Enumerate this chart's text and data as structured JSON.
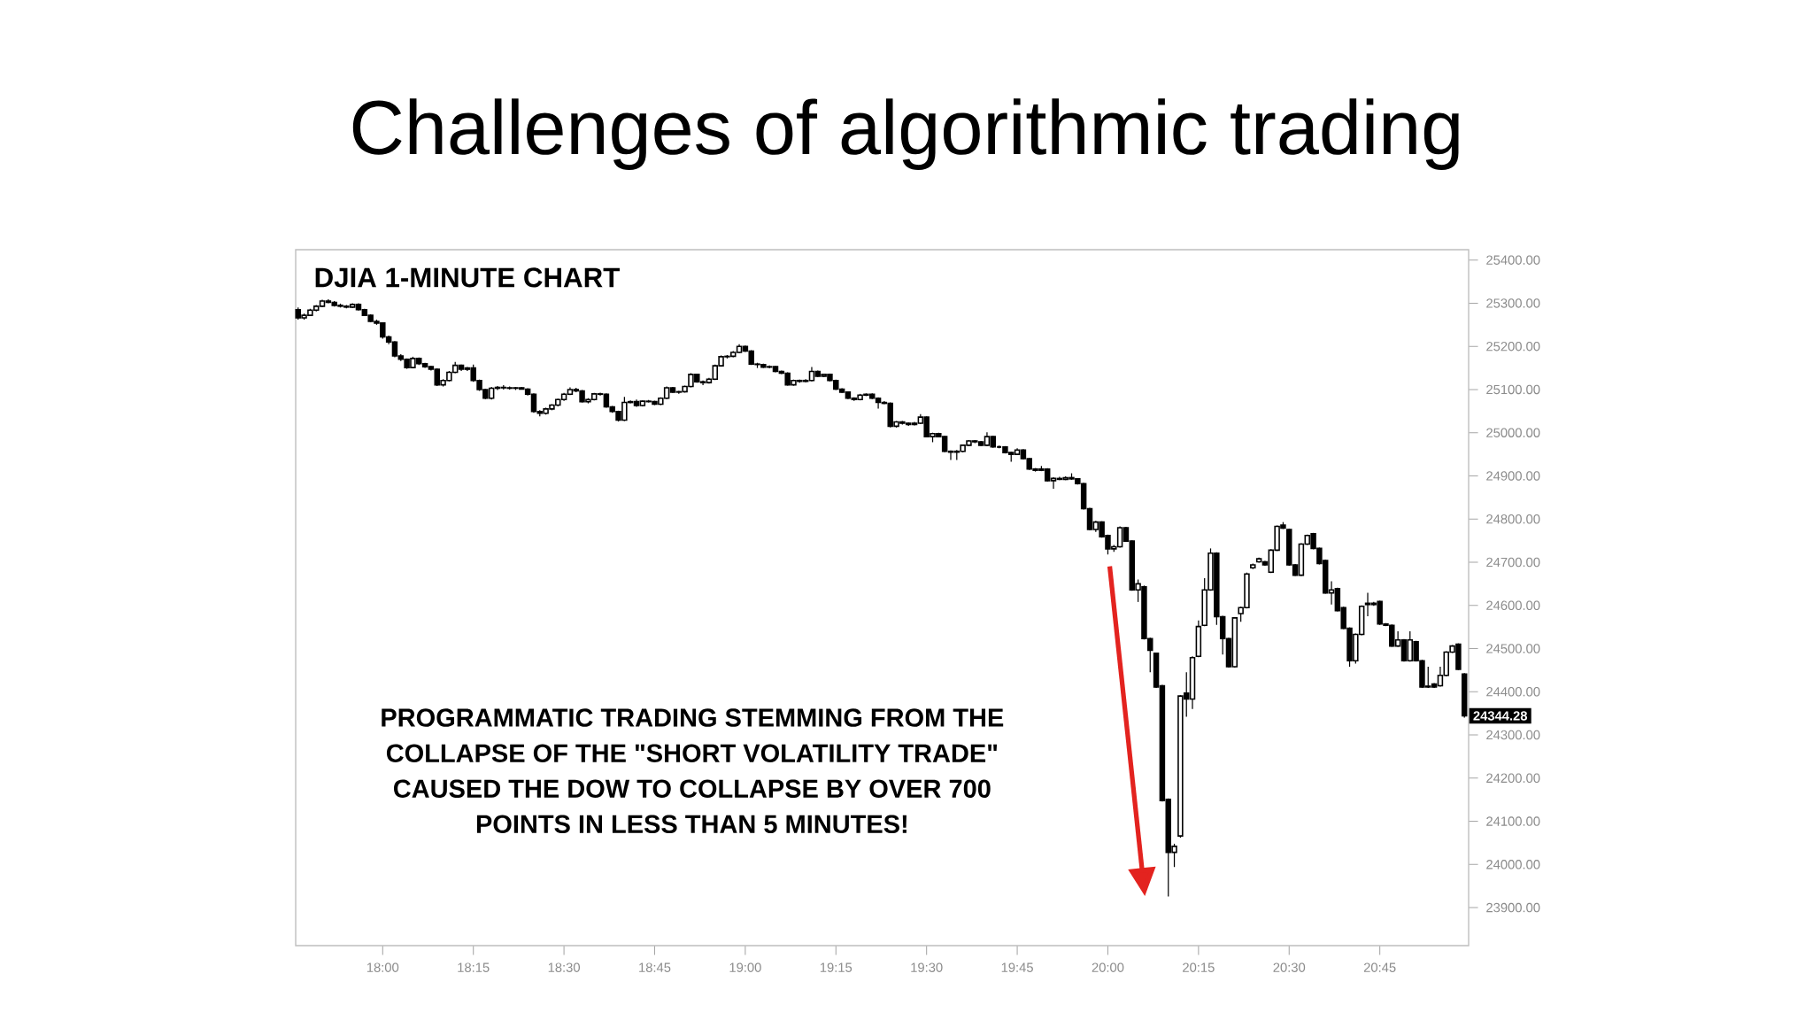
{
  "chart_data": {
    "type": "candlestick",
    "title": "Challenges of algorithmic trading",
    "subtitle": "DJIA 1-MINUTE CHART",
    "annotations": [
      "PROGRAMMATIC TRADING STEMMING FROM THE COLLAPSE OF THE \"SHORT VOLATILITY TRADE\" CAUSED THE DOW TO COLLAPSE BY OVER 700 POINTS IN LESS THAN 5 MINUTES!",
      "24344.28"
    ],
    "color": "#000000",
    "x": [
      17.7667,
      17.7833,
      17.8,
      17.8167,
      17.8333,
      17.85,
      17.8667,
      17.8833,
      17.9,
      17.9167,
      17.9333,
      17.95,
      17.9667,
      17.9833,
      18,
      18.0167,
      18.0333,
      18.05,
      18.0667,
      18.0833,
      18.1,
      18.1167,
      18.1333,
      18.15,
      18.1667,
      18.1833,
      18.2,
      18.2167,
      18.2333,
      18.25,
      18.2667,
      18.2833,
      18.3,
      18.3167,
      18.3333,
      18.35,
      18.3667,
      18.3833,
      18.4,
      18.4167,
      18.4333,
      18.45,
      18.4667,
      18.4833,
      18.5,
      18.5167,
      18.5333,
      18.55,
      18.5667,
      18.5833,
      18.6,
      18.6167,
      18.6333,
      18.65,
      18.6667,
      18.6833,
      18.7,
      18.7167,
      18.7333,
      18.75,
      18.7667,
      18.7833,
      18.8,
      18.8167,
      18.8333,
      18.85,
      18.8667,
      18.8833,
      18.9,
      18.9167,
      18.9333,
      18.95,
      18.9667,
      18.9833,
      19,
      19.0167,
      19.0333,
      19.05,
      19.0667,
      19.0833,
      19.1,
      19.1167,
      19.1333,
      19.15,
      19.1667,
      19.1833,
      19.2,
      19.2167,
      19.2333,
      19.25,
      19.2667,
      19.2833,
      19.3,
      19.3167,
      19.3333,
      19.35,
      19.3667,
      19.3833,
      19.4,
      19.4167,
      19.4333,
      19.45,
      19.4667,
      19.4833,
      19.5,
      19.5167,
      19.5333,
      19.55,
      19.5667,
      19.5833,
      19.6,
      19.6167,
      19.6333,
      19.65,
      19.6667,
      19.6833,
      19.7,
      19.7167,
      19.7333,
      19.75,
      19.7667,
      19.7833,
      19.8,
      19.8167,
      19.8333,
      19.85,
      19.8667,
      19.8833,
      19.9,
      19.9167,
      19.9333,
      19.95,
      19.9667,
      19.9833,
      20,
      20.0167,
      20.0333,
      20.05,
      20.0667,
      20.0833,
      20.1,
      20.1167,
      20.1333,
      20.15,
      20.1667,
      20.1833,
      20.2,
      20.2167,
      20.2333,
      20.25,
      20.2667,
      20.2833,
      20.3,
      20.3167,
      20.3333,
      20.35,
      20.3667,
      20.3833,
      20.4,
      20.4167,
      20.4333,
      20.45,
      20.4667,
      20.4833,
      20.5,
      20.5167,
      20.5333,
      20.55,
      20.5667,
      20.5833,
      20.6,
      20.6167,
      20.6333,
      20.65,
      20.6667,
      20.6833,
      20.7,
      20.7167,
      20.7333,
      20.75,
      20.7667,
      20.7833,
      20.8,
      20.8167,
      20.8333,
      20.85,
      20.8667,
      20.8833,
      20.9,
      20.9167,
      20.9333,
      20.95,
      20.9667,
      20.9833
    ],
    "ohlc": [
      [
        25285,
        25290,
        25262,
        25266
      ],
      [
        25266,
        25276,
        25262,
        25272
      ],
      [
        25272,
        25287,
        25270,
        25284
      ],
      [
        25284,
        25296,
        25281,
        25293
      ],
      [
        25293,
        25308,
        25291,
        25305
      ],
      [
        25305,
        25309,
        25300,
        25302
      ],
      [
        25302,
        25305,
        25292,
        25295
      ],
      [
        25295,
        25299,
        25290,
        25293
      ],
      [
        25293,
        25296,
        25288,
        25291
      ],
      [
        25291,
        25300,
        25289,
        25297
      ],
      [
        25297,
        25300,
        25283,
        25285
      ],
      [
        25285,
        25287,
        25270,
        25272
      ],
      [
        25272,
        25274,
        25256,
        25258
      ],
      [
        25258,
        25262,
        25250,
        25254
      ],
      [
        25254,
        25256,
        25218,
        25222
      ],
      [
        25222,
        25225,
        25205,
        25210
      ],
      [
        25210,
        25212,
        25175,
        25178
      ],
      [
        25178,
        25182,
        25166,
        25170
      ],
      [
        25170,
        25172,
        25148,
        25151
      ],
      [
        25151,
        25176,
        25149,
        25172
      ],
      [
        25172,
        25174,
        25157,
        25160
      ],
      [
        25160,
        25162,
        25150,
        25153
      ],
      [
        25153,
        25155,
        25144,
        25147
      ],
      [
        25147,
        25149,
        25108,
        25111
      ],
      [
        25111,
        25124,
        25107,
        25121
      ],
      [
        25121,
        25143,
        25119,
        25140
      ],
      [
        25140,
        25164,
        25138,
        25156
      ],
      [
        25156,
        25158,
        25143,
        25147
      ],
      [
        25147,
        25152,
        25143,
        25150
      ],
      [
        25150,
        25158,
        25118,
        25121
      ],
      [
        25121,
        25123,
        25097,
        25100
      ],
      [
        25100,
        25102,
        25078,
        25080
      ],
      [
        25080,
        25106,
        25077,
        25103
      ],
      [
        25103,
        25108,
        25099,
        25105
      ],
      [
        25105,
        25110,
        25100,
        25104
      ],
      [
        25104,
        25107,
        25100,
        25103
      ],
      [
        25103,
        25106,
        25099,
        25104
      ],
      [
        25104,
        25106,
        25100,
        25101
      ],
      [
        25101,
        25103,
        25086,
        25089
      ],
      [
        25089,
        25091,
        25046,
        25049
      ],
      [
        25049,
        25052,
        25038,
        25045
      ],
      [
        25045,
        25058,
        25042,
        25055
      ],
      [
        25055,
        25066,
        25052,
        25064
      ],
      [
        25064,
        25079,
        25061,
        25077
      ],
      [
        25077,
        25092,
        25074,
        25089
      ],
      [
        25089,
        25105,
        25087,
        25100
      ],
      [
        25100,
        25104,
        25094,
        25097
      ],
      [
        25097,
        25099,
        25070,
        25072
      ],
      [
        25072,
        25080,
        25068,
        25077
      ],
      [
        25077,
        25092,
        25075,
        25090
      ],
      [
        25090,
        25093,
        25086,
        25089
      ],
      [
        25089,
        25091,
        25058,
        25060
      ],
      [
        25060,
        25062,
        25046,
        25049
      ],
      [
        25049,
        25051,
        25026,
        25029
      ],
      [
        25029,
        25083,
        25027,
        25070
      ],
      [
        25070,
        25075,
        25068,
        25072
      ],
      [
        25072,
        25077,
        25060,
        25063
      ],
      [
        25063,
        25075,
        25061,
        25073
      ],
      [
        25073,
        25076,
        25070,
        25072
      ],
      [
        25072,
        25074,
        25064,
        25066
      ],
      [
        25066,
        25082,
        25064,
        25080
      ],
      [
        25080,
        25107,
        25078,
        25104
      ],
      [
        25104,
        25106,
        25092,
        25094
      ],
      [
        25094,
        25097,
        25090,
        25095
      ],
      [
        25095,
        25109,
        25093,
        25107
      ],
      [
        25107,
        25138,
        25105,
        25135
      ],
      [
        25135,
        25137,
        25116,
        25118
      ],
      [
        25118,
        25121,
        25110,
        25116
      ],
      [
        25116,
        25127,
        25114,
        25124
      ],
      [
        25124,
        25158,
        25122,
        25155
      ],
      [
        25155,
        25179,
        25153,
        25176
      ],
      [
        25176,
        25180,
        25172,
        25177
      ],
      [
        25177,
        25189,
        25175,
        25186
      ],
      [
        25186,
        25205,
        25184,
        25200
      ],
      [
        25200,
        25202,
        25187,
        25189
      ],
      [
        25189,
        25191,
        25157,
        25159
      ],
      [
        25159,
        25162,
        25150,
        25158
      ],
      [
        25158,
        25160,
        25150,
        25152
      ],
      [
        25152,
        25156,
        25149,
        25153
      ],
      [
        25153,
        25155,
        25140,
        25142
      ],
      [
        25142,
        25144,
        25136,
        25138
      ],
      [
        25138,
        25140,
        25109,
        25111
      ],
      [
        25111,
        25123,
        25109,
        25121
      ],
      [
        25121,
        25123,
        25116,
        25119
      ],
      [
        25119,
        25124,
        25117,
        25121
      ],
      [
        25121,
        25152,
        25119,
        25142
      ],
      [
        25142,
        25144,
        25129,
        25131
      ],
      [
        25131,
        25137,
        25129,
        25135
      ],
      [
        25135,
        25137,
        25119,
        25121
      ],
      [
        25121,
        25123,
        25099,
        25101
      ],
      [
        25101,
        25103,
        25092,
        25094
      ],
      [
        25094,
        25096,
        25078,
        25080
      ],
      [
        25080,
        25082,
        25074,
        25077
      ],
      [
        25077,
        25090,
        25075,
        25087
      ],
      [
        25087,
        25091,
        25085,
        25089
      ],
      [
        25089,
        25091,
        25078,
        25080
      ],
      [
        25080,
        25082,
        25056,
        25070
      ],
      [
        25070,
        25073,
        25066,
        25068
      ],
      [
        25068,
        25070,
        25012,
        25015
      ],
      [
        25015,
        25027,
        25012,
        25025
      ],
      [
        25025,
        25027,
        25019,
        25022
      ],
      [
        25022,
        25024,
        25016,
        25019
      ],
      [
        25019,
        25025,
        25017,
        25022
      ],
      [
        25022,
        25043,
        25020,
        25036
      ],
      [
        25036,
        25038,
        24989,
        24991
      ],
      [
        24991,
        25000,
        24978,
        24998
      ],
      [
        24998,
        25000,
        24989,
        24991
      ],
      [
        24991,
        24993,
        24955,
        24957
      ],
      [
        24957,
        24959,
        24937,
        24955
      ],
      [
        24955,
        24960,
        24937,
        24957
      ],
      [
        24957,
        24973,
        24955,
        24971
      ],
      [
        24971,
        24983,
        24969,
        24981
      ],
      [
        24981,
        24983,
        24976,
        24979
      ],
      [
        24979,
        24981,
        24969,
        24971
      ],
      [
        24971,
        25001,
        24969,
        24991
      ],
      [
        24991,
        24993,
        24965,
        24967
      ],
      [
        24967,
        24970,
        24964,
        24967
      ],
      [
        24967,
        24969,
        24952,
        24954
      ],
      [
        24954,
        24956,
        24933,
        24950
      ],
      [
        24950,
        24964,
        24948,
        24960
      ],
      [
        24960,
        24962,
        24938,
        24940
      ],
      [
        24940,
        24942,
        24914,
        24916
      ],
      [
        24916,
        24918,
        24910,
        24913
      ],
      [
        24913,
        24923,
        24911,
        24916
      ],
      [
        24916,
        24918,
        24887,
        24889
      ],
      [
        24889,
        24897,
        24870,
        24894
      ],
      [
        24894,
        24898,
        24890,
        24892
      ],
      [
        24892,
        24899,
        24890,
        24896
      ],
      [
        24896,
        24906,
        24891,
        24893
      ],
      [
        24893,
        24895,
        24880,
        24882
      ],
      [
        24882,
        24884,
        24822,
        24824
      ],
      [
        24824,
        24826,
        24774,
        24776
      ],
      [
        24776,
        24796,
        24770,
        24793
      ],
      [
        24793,
        24795,
        24757,
        24759
      ],
      [
        24762,
        24764,
        24718,
        24731
      ],
      [
        24731,
        24740,
        24724,
        24736
      ],
      [
        24736,
        24783,
        24734,
        24780
      ],
      [
        24780,
        24782,
        24747,
        24749
      ],
      [
        24749,
        24751,
        24634,
        24636
      ],
      [
        24636,
        24660,
        24608,
        24650
      ],
      [
        24643,
        24646,
        24521,
        24523
      ],
      [
        24523,
        24525,
        24445,
        24496
      ],
      [
        24489,
        24491,
        24409,
        24411
      ],
      [
        24414,
        24416,
        24146,
        24148
      ],
      [
        24151,
        24153,
        23926,
        24028
      ],
      [
        24028,
        24048,
        23994,
        24042
      ],
      [
        24066,
        24392,
        24062,
        24390
      ],
      [
        24397,
        24445,
        24342,
        24383
      ],
      [
        24383,
        24482,
        24360,
        24479
      ],
      [
        24482,
        24565,
        24480,
        24551
      ],
      [
        24554,
        24663,
        24552,
        24636
      ],
      [
        24636,
        24732,
        24634,
        24721
      ],
      [
        24721,
        24723,
        24555,
        24574
      ],
      [
        24574,
        24576,
        24486,
        24523
      ],
      [
        24523,
        24525,
        24456,
        24458
      ],
      [
        24458,
        24573,
        24456,
        24571
      ],
      [
        24581,
        24597,
        24562,
        24595
      ],
      [
        24595,
        24676,
        24593,
        24673
      ],
      [
        24687,
        24697,
        24684,
        24694
      ],
      [
        24701,
        24711,
        24699,
        24708
      ],
      [
        24701,
        24703,
        24692,
        24694
      ],
      [
        24677,
        24730,
        24675,
        24728
      ],
      [
        24728,
        24785,
        24726,
        24783
      ],
      [
        24786,
        24793,
        24777,
        24779
      ],
      [
        24776,
        24778,
        24692,
        24694
      ],
      [
        24694,
        24696,
        24668,
        24670
      ],
      [
        24670,
        24744,
        24668,
        24742
      ],
      [
        24742,
        24764,
        24740,
        24762
      ],
      [
        24766,
        24768,
        24730,
        24732
      ],
      [
        24732,
        24734,
        24695,
        24697
      ],
      [
        24704,
        24706,
        24627,
        24629
      ],
      [
        24629,
        24656,
        24602,
        24636
      ],
      [
        24639,
        24641,
        24586,
        24588
      ],
      [
        24595,
        24597,
        24545,
        24547
      ],
      [
        24547,
        24549,
        24458,
        24472
      ],
      [
        24472,
        24535,
        24465,
        24533
      ],
      [
        24533,
        24600,
        24531,
        24598
      ],
      [
        24602,
        24629,
        24575,
        24605
      ],
      [
        24605,
        24608,
        24599,
        24602
      ],
      [
        24609,
        24611,
        24555,
        24557
      ],
      [
        24557,
        24559,
        24552,
        24554
      ],
      [
        24554,
        24556,
        24504,
        24506
      ],
      [
        24506,
        24540,
        24504,
        24520
      ],
      [
        24520,
        24522,
        24470,
        24472
      ],
      [
        24472,
        24540,
        24470,
        24520
      ],
      [
        24516,
        24518,
        24470,
        24472
      ],
      [
        24472,
        24474,
        24409,
        24411
      ],
      [
        24411,
        24458,
        24409,
        24413
      ],
      [
        24418,
        24420,
        24409,
        24411
      ],
      [
        24414,
        24458,
        24412,
        24438
      ],
      [
        24438,
        24494,
        24436,
        24492
      ],
      [
        24492,
        24508,
        24490,
        24506
      ],
      [
        24510,
        24512,
        24450,
        24452
      ],
      [
        24441,
        24443,
        24340,
        24344.28
      ]
    ],
    "xlim": [
      17.76,
      20.995
    ],
    "ylim": [
      23812,
      25424
    ],
    "xticks": [
      {
        "value": 18,
        "label": "18:00"
      },
      {
        "value": 18.25,
        "label": "18:15"
      },
      {
        "value": 18.5,
        "label": "18:30"
      },
      {
        "value": 18.75,
        "label": "18:45"
      },
      {
        "value": 19,
        "label": "19:00"
      },
      {
        "value": 19.25,
        "label": "19:15"
      },
      {
        "value": 19.5,
        "label": "19:30"
      },
      {
        "value": 19.75,
        "label": "19:45"
      },
      {
        "value": 20,
        "label": "20:00"
      },
      {
        "value": 20.25,
        "label": "20:15"
      },
      {
        "value": 20.5,
        "label": "20:30"
      },
      {
        "value": 20.75,
        "label": "20:45"
      }
    ],
    "yticks": [
      {
        "value": 23900,
        "label": "23900.00"
      },
      {
        "value": 24000,
        "label": "24000.00"
      },
      {
        "value": 24100,
        "label": "24100.00"
      },
      {
        "value": 24200,
        "label": "24200.00"
      },
      {
        "value": 24300,
        "label": "24300.00"
      },
      {
        "value": 24400,
        "label": "24400.00"
      },
      {
        "value": 24500,
        "label": "24500.00"
      },
      {
        "value": 24600,
        "label": "24600.00"
      },
      {
        "value": 24700,
        "label": "24700.00"
      },
      {
        "value": 24800,
        "label": "24800.00"
      },
      {
        "value": 24900,
        "label": "24900.00"
      },
      {
        "value": 25000,
        "label": "25000.00"
      },
      {
        "value": 25100,
        "label": "25100.00"
      },
      {
        "value": 25200,
        "label": "25200.00"
      },
      {
        "value": 25300,
        "label": "25300.00"
      },
      {
        "value": 25400,
        "label": "25400.00"
      }
    ]
  }
}
